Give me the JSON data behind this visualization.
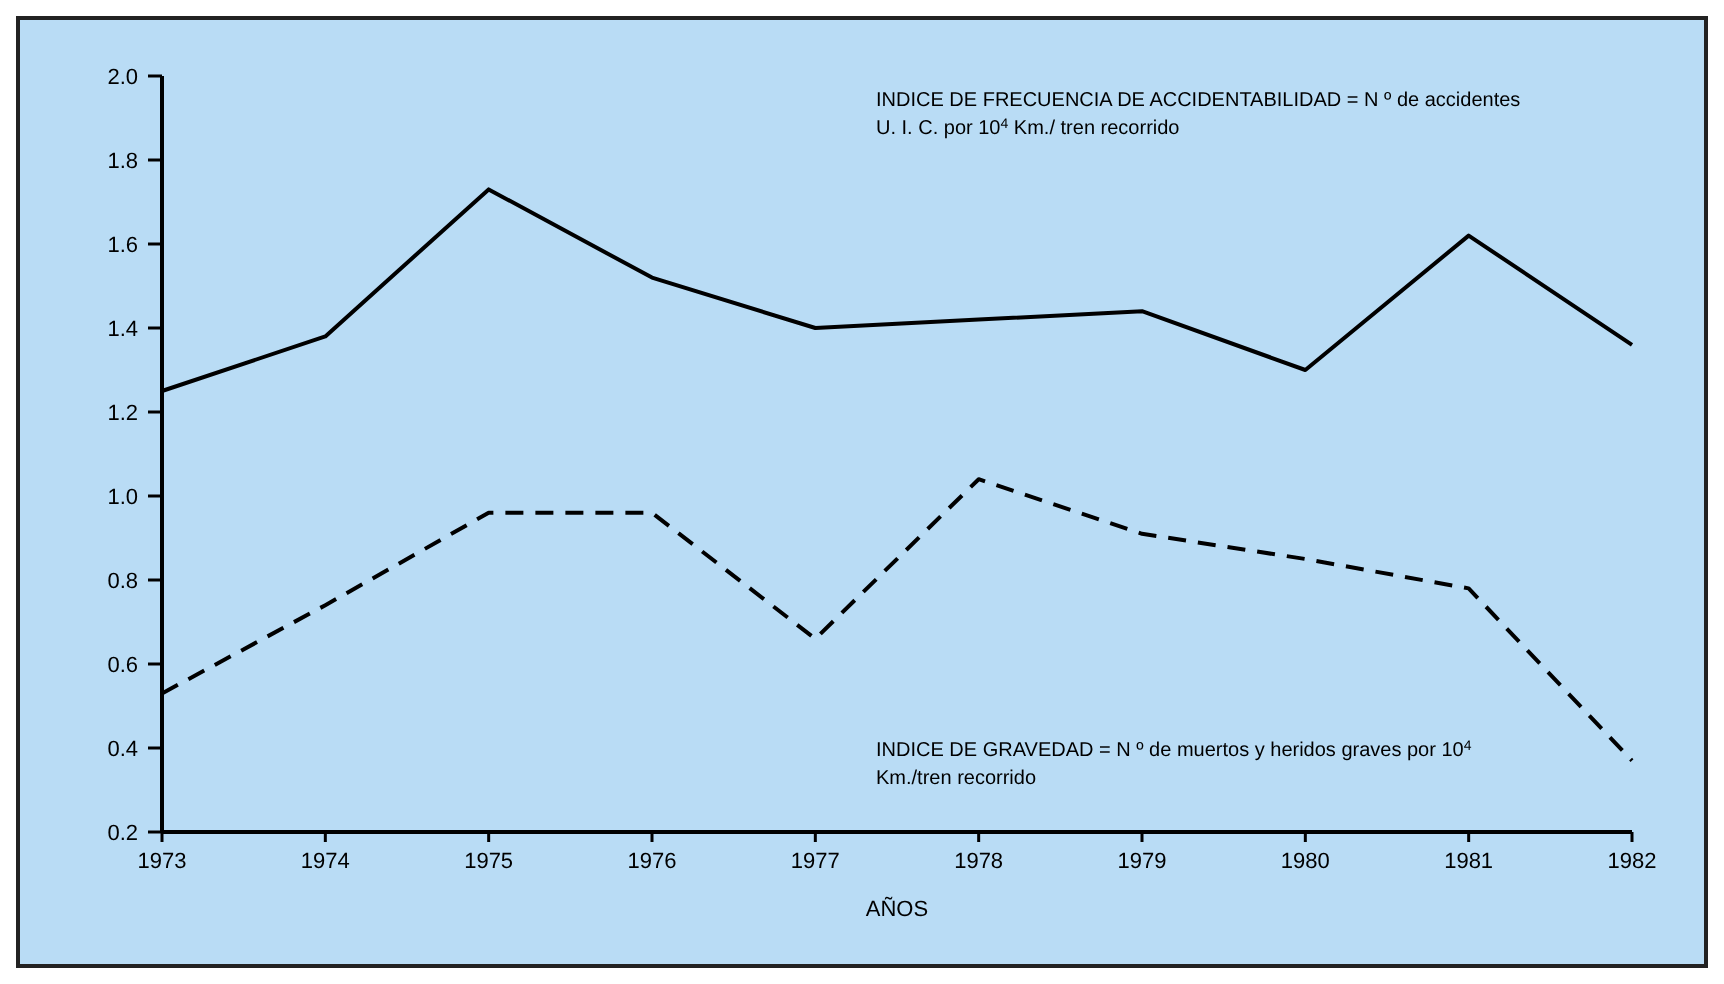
{
  "chart_data": {
    "type": "line",
    "xlabel": "AÑOS",
    "categories": [
      "1973",
      "1974",
      "1975",
      "1976",
      "1977",
      "1978",
      "1979",
      "1980",
      "1981",
      "1982"
    ],
    "series": [
      {
        "color": "#000000",
        "line_style": "solid",
        "values": [
          1.25,
          1.38,
          1.73,
          1.52,
          1.4,
          1.42,
          1.44,
          1.3,
          1.62,
          1.36
        ]
      },
      {
        "color": "#000000",
        "line_style": "dashed",
        "values": [
          0.53,
          0.74,
          0.96,
          0.96,
          0.66,
          1.04,
          0.91,
          0.85,
          0.78,
          0.37
        ]
      }
    ],
    "ylim": [
      0.2,
      2.0
    ],
    "yticks": [
      0.2,
      0.4,
      0.6,
      0.8,
      {
        "value": 1,
        "label": "1.0"
      },
      1.2,
      1.4,
      1.6,
      1.8,
      {
        "value": 2,
        "label": "2.0"
      }
    ],
    "grid": false,
    "marker": "none",
    "annotations": [
      "INDICE DE FRECUENCIA DE ACCIDENTABILIDAD = N º de accidentes U. I. C. por 10$^{4}$ Km./ tren recorrido",
      "INDICE DE GRAVEDAD = N º de muertos y heridos graves por 10$^{4}$ Km./tren recorrido"
    ]
  }
}
